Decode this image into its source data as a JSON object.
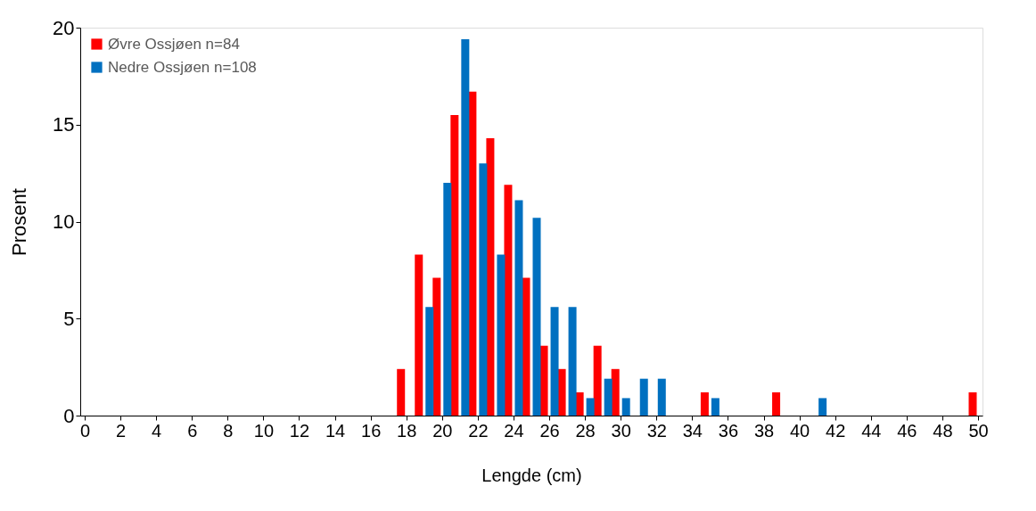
{
  "chart_data": {
    "type": "bar",
    "xlabel": "Lengde (cm)",
    "ylabel": "Prosent",
    "series": [
      {
        "name": "Øvre Ossjøen n=84",
        "color": "#ff0000",
        "x": [
          18,
          19,
          20,
          21,
          22,
          23,
          24,
          25,
          26,
          27,
          28,
          29,
          30,
          35,
          39,
          50
        ],
        "values": [
          2.4,
          8.3,
          7.1,
          15.5,
          16.7,
          14.3,
          11.9,
          7.1,
          3.6,
          2.4,
          1.2,
          3.6,
          2.4,
          1.2,
          1.2,
          1.2
        ]
      },
      {
        "name": "Nedre Ossjøen n=108",
        "color": "#0070c0",
        "x": [
          19,
          20,
          21,
          22,
          23,
          24,
          25,
          26,
          27,
          28,
          29,
          30,
          31,
          32,
          35,
          41
        ],
        "values": [
          5.6,
          12.0,
          19.4,
          13.0,
          8.3,
          11.1,
          10.2,
          5.6,
          5.6,
          0.9,
          1.9,
          0.9,
          1.9,
          1.9,
          0.9,
          0.9
        ]
      }
    ],
    "xlim": [
      0,
      50
    ],
    "xticks": [
      0,
      2,
      4,
      6,
      8,
      10,
      12,
      14,
      16,
      18,
      20,
      22,
      24,
      26,
      28,
      30,
      32,
      34,
      36,
      38,
      40,
      42,
      44,
      46,
      48,
      50
    ],
    "ylim": [
      0,
      20
    ],
    "yticks": [
      0,
      5,
      10,
      15,
      20
    ],
    "grid": false,
    "legend": "top left"
  }
}
